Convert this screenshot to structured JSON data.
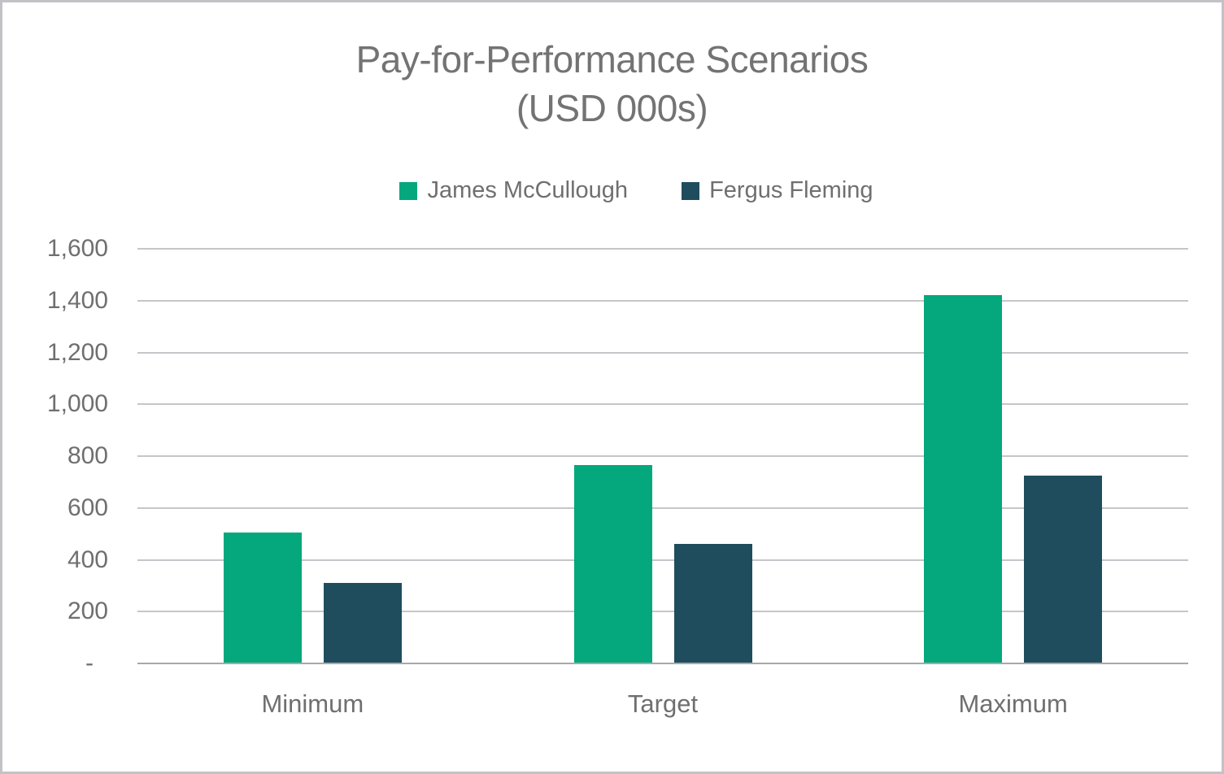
{
  "chart": {
    "title_line1": "Pay-for-Performance Scenarios",
    "title_line2": "(USD 000s)"
  },
  "chart_data": {
    "type": "bar",
    "title": "Pay-for-Performance Scenarios (USD 000s)",
    "categories": [
      "Minimum",
      "Target",
      "Maximum"
    ],
    "series": [
      {
        "name": "James McCullough",
        "color": "#04A87C",
        "values": [
          505,
          765,
          1420
        ]
      },
      {
        "name": "Fergus Fleming",
        "color": "#1F4D5E",
        "values": [
          310,
          460,
          725
        ]
      }
    ],
    "xlabel": "",
    "ylabel": "",
    "ylim": [
      0,
      1600
    ],
    "ytick_step": 200,
    "yticks": [
      {
        "value": 0,
        "label": "-"
      },
      {
        "value": 200,
        "label": "200"
      },
      {
        "value": 400,
        "label": "400"
      },
      {
        "value": 600,
        "label": "600"
      },
      {
        "value": 800,
        "label": "800"
      },
      {
        "value": 1000,
        "label": "1,000"
      },
      {
        "value": 1200,
        "label": "1,200"
      },
      {
        "value": 1400,
        "label": "1,400"
      },
      {
        "value": 1600,
        "label": "1,600"
      }
    ],
    "legend_position": "top",
    "grid": "horizontal",
    "text_color": "#6f6f6f",
    "gridline_color": "#c6c6ca"
  }
}
